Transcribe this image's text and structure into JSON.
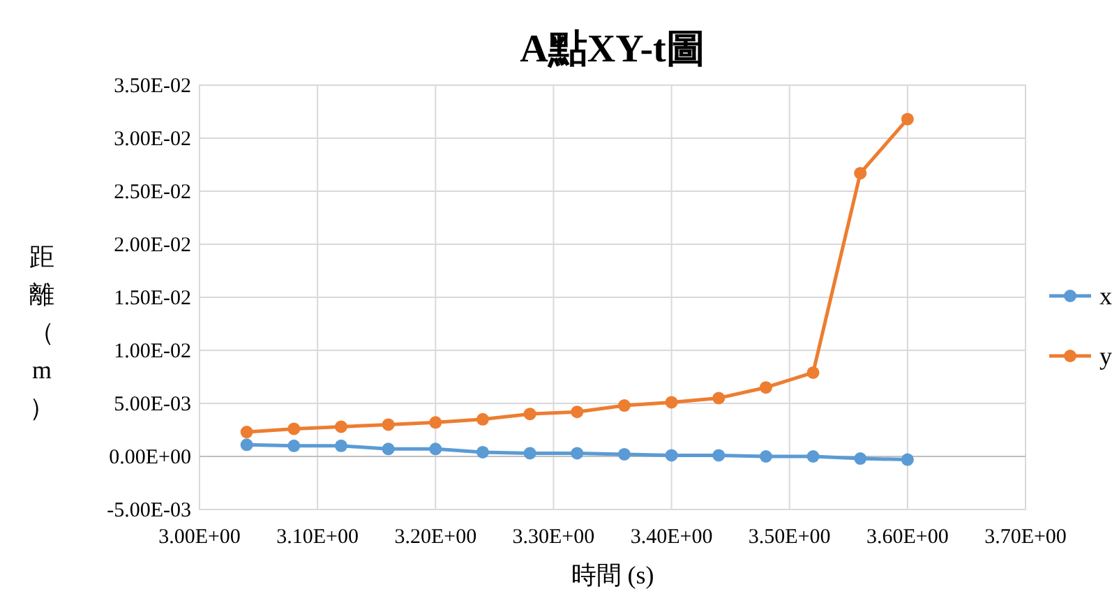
{
  "chart_data": {
    "type": "line",
    "title": "A點XY-t圖",
    "xlabel": "時間 (s)",
    "ylabel": "距離（m）",
    "x": [
      3.04,
      3.08,
      3.12,
      3.16,
      3.2,
      3.24,
      3.28,
      3.32,
      3.36,
      3.4,
      3.44,
      3.48,
      3.52,
      3.56,
      3.6
    ],
    "series": [
      {
        "name": "x",
        "color": "#5b9bd5",
        "values": [
          0.0011,
          0.001,
          0.001,
          0.0007,
          0.0007,
          0.0004,
          0.0003,
          0.0003,
          0.0002,
          0.0001,
          0.0001,
          0,
          0,
          -0.0002,
          -0.0003
        ]
      },
      {
        "name": "y",
        "color": "#ed7d31",
        "values": [
          0.0023,
          0.0026,
          0.0028,
          0.003,
          0.0032,
          0.0035,
          0.004,
          0.0042,
          0.0048,
          0.0051,
          0.0055,
          0.0065,
          0.0079,
          0.0267,
          0.0318
        ]
      }
    ],
    "xlim": [
      3.0,
      3.7
    ],
    "xticks": [
      {
        "value": 3.0,
        "label": "3.00E+00"
      },
      {
        "value": 3.1,
        "label": "3.10E+00"
      },
      {
        "value": 3.2,
        "label": "3.20E+00"
      },
      {
        "value": 3.3,
        "label": "3.30E+00"
      },
      {
        "value": 3.4,
        "label": "3.40E+00"
      },
      {
        "value": 3.5,
        "label": "3.50E+00"
      },
      {
        "value": 3.6,
        "label": "3.60E+00"
      },
      {
        "value": 3.7,
        "label": "3.70E+00"
      }
    ],
    "ylim": [
      -0.005,
      0.035
    ],
    "yticks": [
      {
        "value": -0.005,
        "label": "-5.00E-03"
      },
      {
        "value": 0,
        "label": "0.00E+00"
      },
      {
        "value": 0.005,
        "label": "5.00E-03"
      },
      {
        "value": 0.01,
        "label": "1.00E-02"
      },
      {
        "value": 0.015,
        "label": "1.50E-02"
      },
      {
        "value": 0.02,
        "label": "2.00E-02"
      },
      {
        "value": 0.025,
        "label": "2.50E-02"
      },
      {
        "value": 0.03,
        "label": "3.00E-02"
      },
      {
        "value": 0.035,
        "label": "3.50E-02"
      }
    ],
    "grid": true,
    "legend": "right",
    "marker": "circle",
    "line_style": "solid"
  }
}
